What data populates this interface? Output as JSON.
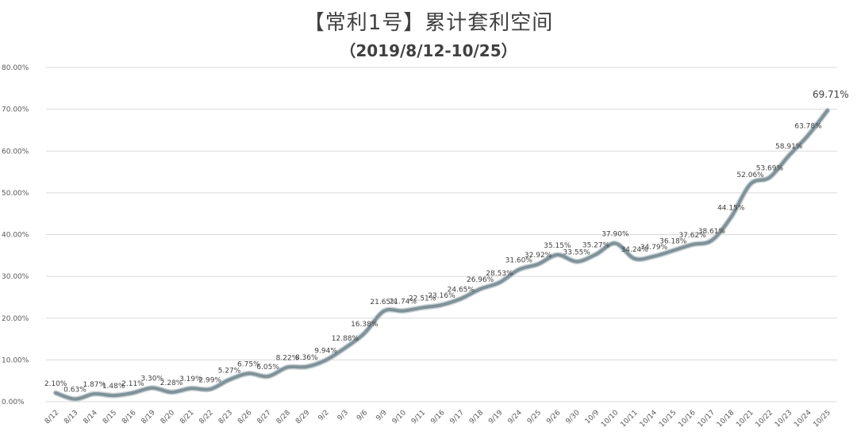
{
  "chart_data": {
    "type": "line",
    "title": "【常利1号】累计套利空间",
    "subtitle": "（2019/8/12-10/25）",
    "ylim": [
      0,
      80
    ],
    "y_ticks": [
      "0.00%",
      "10.00%",
      "20.00%",
      "30.00%",
      "40.00%",
      "50.00%",
      "60.00%",
      "70.00%",
      "80.00%"
    ],
    "y_tick_values": [
      0,
      10,
      20,
      30,
      40,
      50,
      60,
      70,
      80
    ],
    "grid": true,
    "line_color": "#7f9299",
    "x": [
      "8/12",
      "8/13",
      "8/14",
      "8/15",
      "8/16",
      "8/19",
      "8/20",
      "8/21",
      "8/22",
      "8/23",
      "8/26",
      "8/27",
      "8/28",
      "8/29",
      "9/2",
      "9/3",
      "9/6",
      "9/9",
      "9/10",
      "9/11",
      "9/16",
      "9/17",
      "9/18",
      "9/19",
      "9/24",
      "9/25",
      "9/26",
      "9/30",
      "10/9",
      "10/10",
      "10/11",
      "10/14",
      "10/15",
      "10/16",
      "10/17",
      "10/18",
      "10/21",
      "10/22",
      "10/23",
      "10/24",
      "10/25"
    ],
    "values": [
      2.1,
      0.63,
      1.87,
      1.48,
      2.11,
      3.3,
      2.28,
      3.19,
      2.99,
      5.27,
      6.75,
      6.05,
      8.22,
      8.36,
      9.94,
      12.88,
      16.38,
      21.65,
      21.74,
      22.51,
      23.16,
      24.65,
      26.96,
      28.53,
      31.6,
      32.92,
      35.15,
      33.55,
      35.27,
      37.9,
      34.24,
      34.79,
      36.18,
      37.62,
      38.61,
      44.15,
      52.06,
      53.69,
      58.91,
      63.78,
      69.71
    ],
    "labels": [
      "2.10%",
      "0.63%",
      "1.87%",
      "1.48%",
      "2.11%",
      "3.30%",
      "2.28%",
      "3.19%",
      "2.99%",
      "5.27%",
      "6.75%",
      "6.05%",
      "8.22%",
      "8.36%",
      "9.94%",
      "12.88%",
      "16.38%",
      "21.65%",
      "21.74%",
      "22.51%",
      "23.16%",
      "24.65%",
      "26.96%",
      "28.53%",
      "31.60%",
      "32.92%",
      "35.15%",
      "33.55%",
      "35.27%",
      "37.90%",
      "34.24%",
      "34.79%",
      "36.18%",
      "37.62%",
      "38.61%",
      "44.15%",
      "52.06%",
      "53.69%",
      "58.91%",
      "63.78%",
      "69.71%"
    ]
  }
}
